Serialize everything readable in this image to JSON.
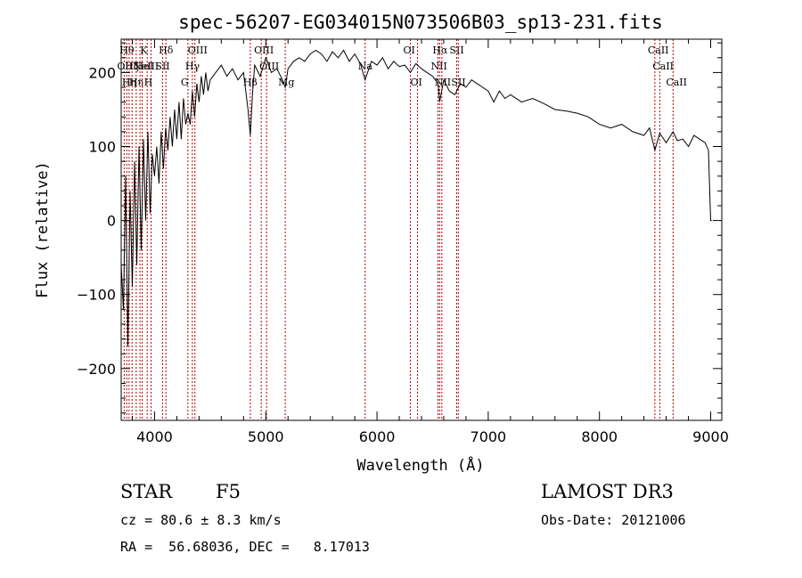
{
  "chart_data": {
    "type": "line",
    "title": "spec-56207-EG034015N073506B03_sp13-231.fits",
    "xlabel": "Wavelength (Å)",
    "ylabel": "Flux (relative)",
    "xlim": [
      3700,
      9100
    ],
    "ylim": [
      -270,
      245
    ],
    "xticks": [
      4000,
      5000,
      6000,
      7000,
      8000,
      9000
    ],
    "yticks": [
      -200,
      -100,
      0,
      100,
      200
    ],
    "grid": false,
    "series": [
      {
        "color": "#000000",
        "x": [
          3700,
          3720,
          3740,
          3760,
          3780,
          3800,
          3820,
          3840,
          3860,
          3880,
          3900,
          3920,
          3940,
          3960,
          3980,
          4000,
          4020,
          4040,
          4060,
          4080,
          4100,
          4120,
          4140,
          4160,
          4180,
          4200,
          4220,
          4240,
          4260,
          4280,
          4300,
          4320,
          4340,
          4360,
          4380,
          4400,
          4420,
          4440,
          4460,
          4480,
          4500,
          4550,
          4600,
          4650,
          4700,
          4750,
          4800,
          4840,
          4861,
          4880,
          4900,
          4950,
          5000,
          5050,
          5100,
          5150,
          5175,
          5200,
          5250,
          5300,
          5350,
          5400,
          5450,
          5500,
          5550,
          5600,
          5650,
          5700,
          5750,
          5800,
          5850,
          5893,
          5950,
          6000,
          6050,
          6100,
          6150,
          6200,
          6250,
          6300,
          6350,
          6400,
          6450,
          6500,
          6550,
          6563,
          6600,
          6650,
          6700,
          6750,
          6800,
          6850,
          6900,
          6950,
          7000,
          7050,
          7100,
          7150,
          7200,
          7300,
          7400,
          7500,
          7600,
          7700,
          7800,
          7900,
          8000,
          8100,
          8200,
          8300,
          8400,
          8450,
          8498,
          8542,
          8600,
          8662,
          8700,
          8750,
          8800,
          8850,
          8900,
          8950,
          8980,
          9000,
          9010
        ],
        "y": [
          -60,
          -120,
          60,
          -170,
          40,
          -90,
          80,
          -60,
          100,
          -40,
          110,
          0,
          120,
          10,
          90,
          60,
          100,
          50,
          120,
          70,
          125,
          95,
          140,
          100,
          150,
          110,
          160,
          110,
          165,
          130,
          145,
          130,
          175,
          140,
          185,
          160,
          195,
          170,
          200,
          175,
          190,
          200,
          210,
          195,
          205,
          190,
          200,
          150,
          115,
          170,
          210,
          195,
          220,
          200,
          205,
          190,
          180,
          205,
          215,
          220,
          215,
          225,
          230,
          225,
          215,
          228,
          220,
          230,
          215,
          225,
          212,
          190,
          215,
          210,
          220,
          205,
          215,
          208,
          210,
          200,
          212,
          205,
          200,
          195,
          185,
          160,
          190,
          175,
          170,
          185,
          180,
          190,
          185,
          180,
          175,
          160,
          175,
          165,
          170,
          160,
          165,
          158,
          150,
          148,
          145,
          140,
          130,
          125,
          130,
          120,
          115,
          125,
          95,
          118,
          105,
          120,
          108,
          110,
          100,
          115,
          110,
          105,
          95,
          0,
          0
        ]
      }
    ],
    "lines": [
      {
        "x": 3727,
        "label": "OII",
        "row": 1
      },
      {
        "x": 3750,
        "label": "Hθ",
        "row": 0
      },
      {
        "x": 3771,
        "label": "Hη",
        "row": 2
      },
      {
        "x": 3798,
        "label": "Hζ",
        "row": 1
      },
      {
        "x": 3835,
        "label": "Hη",
        "row": 2
      },
      {
        "x": 3869,
        "label": "NeIII",
        "row": 1
      },
      {
        "x": 3889,
        "label": "HeI",
        "row": 1
      },
      {
        "x": 3934,
        "label": "K",
        "row": 0
      },
      {
        "x": 3969,
        "label": "H",
        "row": 2
      },
      {
        "x": 4072,
        "label": "SII",
        "row": 1
      },
      {
        "x": 4102,
        "label": "Hδ",
        "row": 0
      },
      {
        "x": 4300,
        "label": "G",
        "row": 2
      },
      {
        "x": 4340,
        "label": "Hγ",
        "row": 1
      },
      {
        "x": 4363,
        "label": "OIII",
        "row": 0
      },
      {
        "x": 4861,
        "label": "Hβ",
        "row": 2
      },
      {
        "x": 4959,
        "label": "OIII",
        "row": 0
      },
      {
        "x": 5007,
        "label": "OIII",
        "row": 1
      },
      {
        "x": 5175,
        "label": "Mg",
        "row": 2
      },
      {
        "x": 5893,
        "label": "Na",
        "row": 1
      },
      {
        "x": 6300,
        "label": "OI",
        "row": 0
      },
      {
        "x": 6364,
        "label": "OI",
        "row": 2
      },
      {
        "x": 6548,
        "label": "NII",
        "row": 1
      },
      {
        "x": 6563,
        "label": "Hα",
        "row": 0
      },
      {
        "x": 6583,
        "label": "NII",
        "row": 2
      },
      {
        "x": 6716,
        "label": "SII",
        "row": 0
      },
      {
        "x": 6731,
        "label": "SII",
        "row": 2
      },
      {
        "x": 8498,
        "label": "CaII",
        "row": 0
      },
      {
        "x": 8542,
        "label": "CaII",
        "row": 1
      },
      {
        "x": 8662,
        "label": "CaII",
        "row": 2
      }
    ]
  },
  "info": {
    "class": "STAR",
    "subclass": "F5",
    "survey": "LAMOST DR3",
    "cz": "cz = 80.6 ± 8.3 km/s",
    "obs_date": "Obs-Date: 20121006",
    "coords": "RA =  56.68036, DEC =   8.17013"
  }
}
